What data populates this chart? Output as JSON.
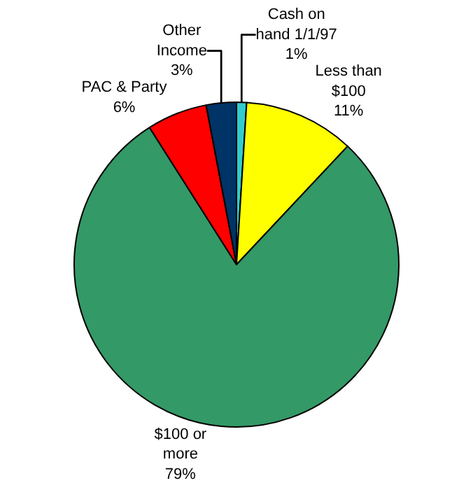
{
  "chart_data": {
    "type": "pie",
    "categories": [
      "Cash on hand 1/1/97",
      "Less than $100",
      "$100 or more",
      "PAC & Party",
      "Other Income"
    ],
    "values": [
      1,
      11,
      79,
      6,
      3
    ],
    "colors": [
      "#33cccc",
      "#ffff00",
      "#339966",
      "#ff0000",
      "#003366"
    ],
    "value_labels": [
      "1%",
      "11%",
      "79%",
      "6%",
      "3%"
    ],
    "legend": false
  }
}
